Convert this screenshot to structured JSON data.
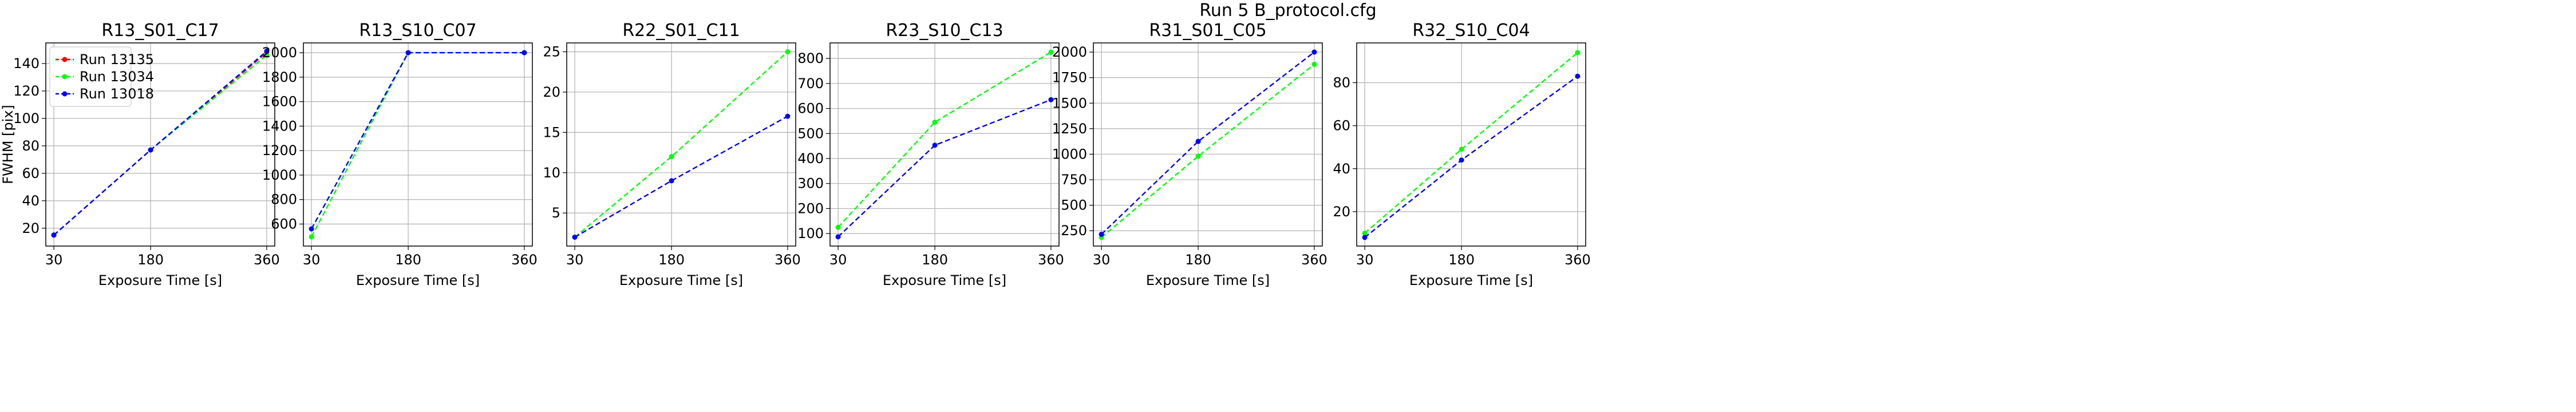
{
  "figure_title": "Run 5 B_protocol.cfg",
  "colors": {
    "red": "#ff0000",
    "green": "#00ff00",
    "blue": "#0000ff",
    "grid": "#b0b0b0",
    "axis": "#000000"
  },
  "chart_data": [
    {
      "type": "line",
      "title": "R13_S01_C17",
      "xlabel": "Exposure Time [s]",
      "ylabel": "FWHM [pix]",
      "x": [
        30,
        180,
        360
      ],
      "xticks": [
        "30",
        "180",
        "360"
      ],
      "yticks": [
        20,
        40,
        60,
        80,
        100,
        120,
        140
      ],
      "ylim": [
        7,
        155
      ],
      "grid": true,
      "legend": "top-left",
      "series": [
        {
          "name": "Run 13135",
          "color": "red",
          "values": [
            15,
            77,
            148
          ]
        },
        {
          "name": "Run 13034",
          "color": "green",
          "values": [
            15,
            77,
            146
          ]
        },
        {
          "name": "Run 13018",
          "color": "blue",
          "values": [
            15,
            77,
            149
          ]
        }
      ]
    },
    {
      "type": "line",
      "title": "R13_S10_C07",
      "xlabel": "Exposure Time [s]",
      "ylabel": "",
      "x": [
        30,
        180,
        360
      ],
      "xticks": [
        "30",
        "180",
        "360"
      ],
      "yticks": [
        600,
        800,
        1000,
        1200,
        1400,
        1600,
        1800,
        2000
      ],
      "ylim": [
        420,
        2080
      ],
      "grid": true,
      "series": [
        {
          "name": "Run 13034",
          "color": "green",
          "values": [
            495,
            2000,
            2000
          ]
        },
        {
          "name": "Run 13018",
          "color": "blue",
          "values": [
            560,
            2000,
            2000
          ]
        }
      ]
    },
    {
      "type": "line",
      "title": "R22_S01_C11",
      "xlabel": "Exposure Time [s]",
      "ylabel": "",
      "x": [
        30,
        180,
        360
      ],
      "xticks": [
        "30",
        "180",
        "360"
      ],
      "yticks": [
        5,
        10,
        15,
        20,
        25
      ],
      "ylim": [
        0.9,
        26.1
      ],
      "grid": true,
      "series": [
        {
          "name": "Run 13034",
          "color": "green",
          "values": [
            2,
            12,
            25
          ]
        },
        {
          "name": "Run 13018",
          "color": "blue",
          "values": [
            2,
            9,
            17
          ]
        }
      ]
    },
    {
      "type": "line",
      "title": "R23_S10_C13",
      "xlabel": "Exposure Time [s]",
      "ylabel": "",
      "x": [
        30,
        180,
        360
      ],
      "xticks": [
        "30",
        "180",
        "360"
      ],
      "yticks": [
        100,
        200,
        300,
        400,
        500,
        600,
        700,
        800
      ],
      "ylim": [
        50,
        862
      ],
      "grid": true,
      "series": [
        {
          "name": "Run 13034",
          "color": "green",
          "values": [
            125,
            545,
            825
          ]
        },
        {
          "name": "Run 13018",
          "color": "blue",
          "values": [
            87,
            453,
            635
          ]
        }
      ]
    },
    {
      "type": "line",
      "title": "R31_S01_C05",
      "xlabel": "Exposure Time [s]",
      "ylabel": "",
      "x": [
        30,
        180,
        360
      ],
      "xticks": [
        "30",
        "180",
        "360"
      ],
      "yticks": [
        250,
        500,
        750,
        1000,
        1250,
        1500,
        1750,
        2000
      ],
      "ylim": [
        100,
        2090
      ],
      "grid": true,
      "series": [
        {
          "name": "Run 13034",
          "color": "green",
          "values": [
            185,
            980,
            1880
          ]
        },
        {
          "name": "Run 13018",
          "color": "blue",
          "values": [
            215,
            1125,
            2000
          ]
        }
      ]
    },
    {
      "type": "line",
      "title": "R32_S10_C04",
      "xlabel": "Exposure Time [s]",
      "ylabel": "",
      "x": [
        30,
        180,
        360
      ],
      "xticks": [
        "30",
        "180",
        "360"
      ],
      "yticks": [
        20,
        40,
        60,
        80
      ],
      "ylim": [
        4,
        98.5
      ],
      "grid": true,
      "series": [
        {
          "name": "Run 13034",
          "color": "green",
          "values": [
            10,
            49,
            94
          ]
        },
        {
          "name": "Run 13018",
          "color": "blue",
          "values": [
            8,
            44,
            83
          ]
        }
      ]
    }
  ]
}
